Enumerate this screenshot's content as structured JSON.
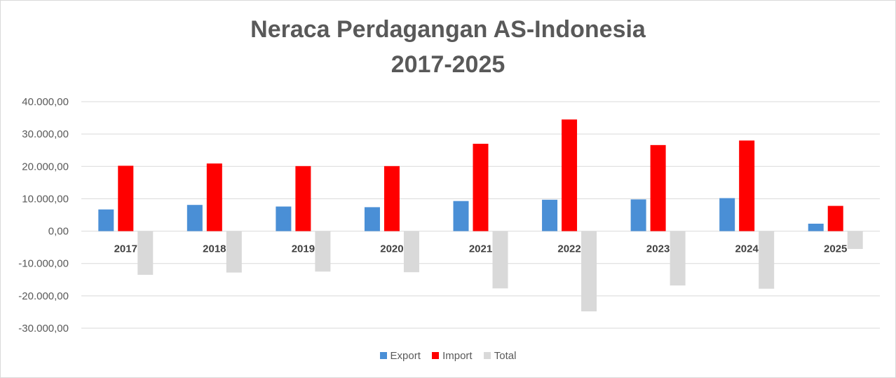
{
  "chart_data": {
    "type": "bar",
    "title_line1": "Neraca Perdagangan AS-Indonesia",
    "title_line2": "2017-2025",
    "categories": [
      "2017",
      "2018",
      "2019",
      "2020",
      "2021",
      "2022",
      "2023",
      "2024",
      "2025"
    ],
    "series": [
      {
        "name": "Export",
        "color": "#4a8fd6",
        "values": [
          6700,
          8100,
          7600,
          7400,
          9300,
          9700,
          9800,
          10200,
          2300
        ]
      },
      {
        "name": "Import",
        "color": "#ff0000",
        "values": [
          20200,
          20900,
          20100,
          20100,
          27000,
          34500,
          26600,
          28000,
          7800
        ]
      },
      {
        "name": "Total",
        "color": "#d9d9d9",
        "values": [
          -13500,
          -12800,
          -12500,
          -12700,
          -17700,
          -24800,
          -16800,
          -17800,
          -5500
        ]
      }
    ],
    "ylim": [
      -30000,
      40000
    ],
    "y_ticks": [
      "40.000,00",
      "30.000,00",
      "20.000,00",
      "10.000,00",
      "0,00",
      "-10.000,00",
      "-20.000,00",
      "-30.000,00"
    ],
    "y_tick_values": [
      40000,
      30000,
      20000,
      10000,
      0,
      -10000,
      -20000,
      -30000
    ],
    "grid": true,
    "legend_position": "bottom"
  }
}
